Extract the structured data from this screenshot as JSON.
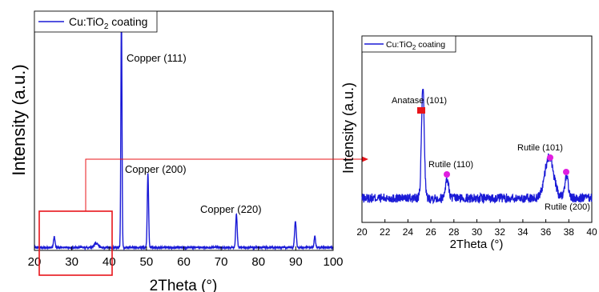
{
  "chart_data": [
    {
      "type": "line",
      "xlabel": "2Theta (°)",
      "ylabel": "Intensity (a.u.)",
      "xlim": [
        20,
        100
      ],
      "ylim": [
        0,
        1.0
      ],
      "xticks": [
        "20",
        "30",
        "40",
        "50",
        "60",
        "70",
        "80",
        "90",
        "100"
      ],
      "legend": {
        "placement": "top-left",
        "label_main": "Cu:TiO",
        "label_sub": "2",
        "label_tail": " coating"
      },
      "series": [
        {
          "name": "Cu:TiO2 coating",
          "color": "#1a1ad6",
          "peaks": [
            {
              "x": 25.3,
              "height": 0.045,
              "width": 0.2
            },
            {
              "x": 36.5,
              "height": 0.018,
              "width": 0.5
            },
            {
              "x": 43.3,
              "height": 0.98,
              "width": 0.15
            },
            {
              "x": 50.4,
              "height": 0.31,
              "width": 0.18
            },
            {
              "x": 74.1,
              "height": 0.14,
              "width": 0.2
            },
            {
              "x": 89.9,
              "height": 0.11,
              "width": 0.22
            },
            {
              "x": 95.1,
              "height": 0.045,
              "width": 0.2
            }
          ],
          "baseline": 0.012,
          "noise": 0.004
        }
      ],
      "annotations": [
        {
          "text": "Copper (111)",
          "x": 43.3
        },
        {
          "text": "Copper (200)",
          "x": 50.4
        },
        {
          "text": "Copper (220)",
          "x": 74.1
        }
      ],
      "zoom_region": {
        "xmin": 20,
        "xmax": 41
      }
    },
    {
      "type": "line",
      "xlabel": "2Theta (°)",
      "ylabel": "Intensity (a.u.)",
      "xlim": [
        20,
        40
      ],
      "ylim": [
        0,
        1.0
      ],
      "xticks": [
        "20",
        "22",
        "24",
        "26",
        "28",
        "30",
        "32",
        "34",
        "36",
        "38",
        "40"
      ],
      "legend": {
        "placement": "top-left",
        "label_main": "Cu:TiO",
        "label_sub": "2",
        "label_tail": " coating"
      },
      "series": [
        {
          "name": "Cu:TiO2 coating",
          "color": "#1a1ad6",
          "peaks": [
            {
              "x": 25.3,
              "height": 0.6,
              "width": 0.12
            },
            {
              "x": 27.4,
              "height": 0.1,
              "width": 0.15
            },
            {
              "x": 36.3,
              "height": 0.22,
              "width": 0.38
            },
            {
              "x": 37.8,
              "height": 0.12,
              "width": 0.15
            }
          ],
          "baseline": 0.13,
          "noise": 0.025
        }
      ],
      "annotations": [
        {
          "text": "Anatase (101)",
          "x": 25.2,
          "marker": "square",
          "marker_color": "#e8141a"
        },
        {
          "text": "Rutile (110)",
          "x": 27.4,
          "marker": "circle",
          "marker_color": "#e01ee0"
        },
        {
          "text": "Rutile (101)",
          "x": 36.3,
          "marker": "circle",
          "marker_color": "#e01ee0"
        },
        {
          "text": "Rutile (200)",
          "x": 37.8,
          "marker": "circle",
          "marker_color": "#e01ee0"
        }
      ]
    }
  ],
  "colors": {
    "line": "#1a1ad6",
    "zoom_box": "#e8141a",
    "anatase_marker": "#e8141a",
    "rutile_marker": "#e01ee0"
  }
}
